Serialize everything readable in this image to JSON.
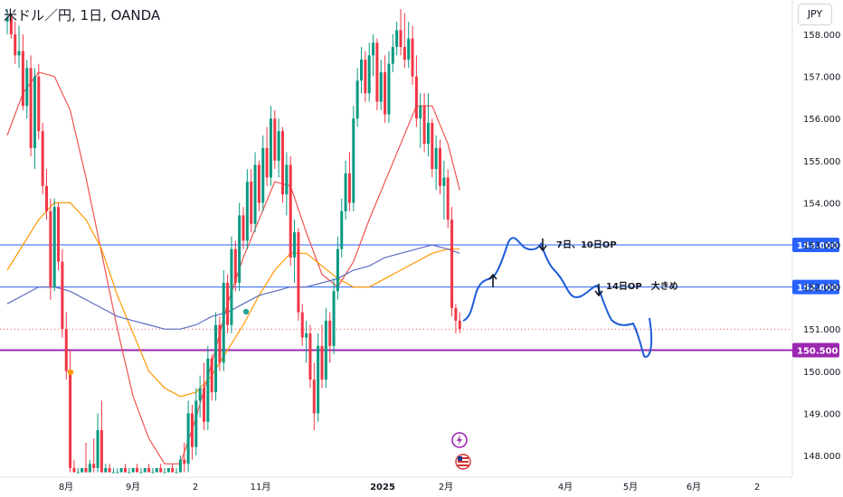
{
  "header": {
    "symbol_title": "米ドル／円, 1日, OANDA",
    "currency_button": "JPY"
  },
  "chart_data": {
    "type": "candlestick",
    "title": "米ドル／円, 1日, OANDA",
    "xlabel": "",
    "ylabel": "",
    "ylim": [
      147.6,
      158.6
    ],
    "y_ticks": [
      "158.000",
      "157.000",
      "156.000",
      "155.000",
      "154.000",
      "153.000",
      "152.000",
      "151.000",
      "150.000",
      "149.000",
      "148.000"
    ],
    "x_ticks": [
      {
        "label": "8月",
        "bold": false
      },
      {
        "label": "9月",
        "bold": false
      },
      {
        "label": "2",
        "bold": false
      },
      {
        "label": "11月",
        "bold": false
      },
      {
        "label": "2025",
        "bold": true
      },
      {
        "label": "2月",
        "bold": false
      },
      {
        "label": "4月",
        "bold": false
      },
      {
        "label": "5月",
        "bold": false
      },
      {
        "label": "6月",
        "bold": false
      },
      {
        "label": "2",
        "bold": false
      }
    ],
    "horizontal_levels": [
      {
        "value": 153.0,
        "label": "153.000",
        "color": "#2962ff"
      },
      {
        "value": 152.0,
        "label": "152.000",
        "color": "#2962ff"
      },
      {
        "value": 150.5,
        "label": "150.500",
        "color": "#9c27b0"
      }
    ],
    "last_price": 151.0,
    "candles": [
      [
        158.3,
        158.6,
        158.0,
        158.4
      ],
      [
        158.4,
        158.5,
        157.9,
        158.0
      ],
      [
        158.0,
        158.3,
        157.3,
        157.5
      ],
      [
        157.5,
        158.2,
        157.2,
        157.6
      ],
      [
        157.6,
        158.0,
        156.2,
        156.3
      ],
      [
        156.3,
        157.4,
        156.0,
        157.2
      ],
      [
        157.2,
        157.5,
        155.1,
        155.3
      ],
      [
        155.3,
        157.2,
        154.8,
        157.0
      ],
      [
        157.0,
        157.3,
        155.5,
        155.7
      ],
      [
        155.7,
        155.9,
        154.2,
        154.4
      ],
      [
        154.4,
        154.8,
        153.6,
        153.8
      ],
      [
        153.8,
        154.1,
        151.7,
        152.0
      ],
      [
        152.0,
        154.1,
        151.9,
        153.9
      ],
      [
        153.9,
        154.0,
        152.4,
        152.6
      ],
      [
        152.6,
        152.9,
        150.8,
        151.0
      ],
      [
        151.0,
        151.4,
        149.8,
        150.0
      ],
      [
        150.0,
        150.5,
        147.6,
        147.7
      ],
      [
        147.7,
        147.9,
        147.6,
        147.6
      ],
      [
        147.6,
        147.7,
        147.6,
        147.6
      ],
      [
        147.6,
        147.7,
        147.6,
        147.7
      ],
      [
        147.7,
        148.3,
        147.6,
        147.6
      ],
      [
        147.6,
        147.9,
        147.6,
        147.8
      ],
      [
        147.8,
        148.4,
        147.6,
        147.7
      ],
      [
        147.7,
        149.0,
        147.6,
        148.6
      ],
      [
        148.6,
        149.3,
        147.6,
        147.6
      ],
      [
        147.6,
        147.8,
        147.6,
        147.7
      ],
      [
        147.7,
        147.8,
        147.6,
        147.6
      ],
      [
        147.6,
        147.7,
        147.6,
        147.6
      ],
      [
        147.6,
        147.7,
        147.6,
        147.6
      ],
      [
        147.6,
        147.7,
        147.6,
        147.7
      ],
      [
        147.7,
        147.8,
        147.6,
        147.6
      ],
      [
        147.6,
        147.7,
        147.6,
        147.6
      ],
      [
        147.6,
        147.7,
        147.6,
        147.7
      ],
      [
        147.7,
        147.8,
        147.6,
        147.6
      ],
      [
        147.6,
        147.7,
        147.6,
        147.6
      ],
      [
        147.6,
        147.7,
        147.6,
        147.7
      ],
      [
        147.7,
        147.8,
        147.6,
        147.6
      ],
      [
        147.6,
        147.7,
        147.6,
        147.6
      ],
      [
        147.6,
        147.7,
        147.6,
        147.7
      ],
      [
        147.7,
        147.8,
        147.6,
        147.6
      ],
      [
        147.6,
        147.7,
        147.6,
        147.6
      ],
      [
        147.6,
        147.7,
        147.6,
        147.7
      ],
      [
        147.7,
        147.8,
        147.6,
        147.6
      ],
      [
        147.6,
        147.7,
        147.6,
        147.6
      ],
      [
        147.6,
        148.0,
        147.6,
        147.9
      ],
      [
        147.9,
        148.3,
        147.6,
        147.8
      ],
      [
        147.8,
        149.3,
        147.6,
        149.0
      ],
      [
        149.0,
        149.2,
        147.9,
        148.2
      ],
      [
        148.2,
        149.6,
        148.0,
        149.3
      ],
      [
        149.3,
        149.9,
        148.9,
        149.6
      ],
      [
        149.6,
        150.2,
        148.6,
        148.8
      ],
      [
        148.8,
        150.6,
        148.6,
        150.3
      ],
      [
        150.3,
        150.4,
        149.3,
        149.5
      ],
      [
        149.5,
        151.4,
        149.3,
        151.1
      ],
      [
        151.1,
        151.3,
        150.0,
        150.2
      ],
      [
        150.2,
        152.4,
        150.0,
        152.1
      ],
      [
        152.1,
        152.3,
        150.9,
        151.1
      ],
      [
        151.1,
        153.2,
        150.9,
        152.9
      ],
      [
        152.9,
        153.1,
        151.9,
        152.1
      ],
      [
        152.1,
        154.0,
        151.9,
        153.7
      ],
      [
        153.7,
        153.9,
        152.9,
        153.1
      ],
      [
        153.1,
        154.8,
        152.9,
        154.5
      ],
      [
        154.5,
        154.8,
        153.3,
        153.5
      ],
      [
        153.5,
        155.2,
        153.3,
        154.9
      ],
      [
        154.9,
        155.0,
        153.8,
        154.0
      ],
      [
        154.0,
        155.6,
        153.8,
        155.3
      ],
      [
        155.3,
        155.8,
        154.4,
        154.6
      ],
      [
        154.6,
        156.3,
        154.4,
        156.0
      ],
      [
        156.0,
        156.2,
        154.8,
        155.0
      ],
      [
        155.0,
        156.0,
        154.6,
        155.7
      ],
      [
        155.7,
        155.8,
        154.0,
        154.2
      ],
      [
        154.2,
        155.2,
        153.7,
        154.9
      ],
      [
        154.9,
        155.1,
        152.5,
        152.7
      ],
      [
        152.7,
        153.6,
        152.1,
        153.3
      ],
      [
        153.3,
        153.4,
        151.2,
        151.4
      ],
      [
        151.4,
        151.6,
        150.6,
        150.8
      ],
      [
        150.8,
        151.2,
        150.2,
        150.9
      ],
      [
        150.9,
        151.1,
        149.6,
        149.8
      ],
      [
        149.8,
        150.2,
        148.6,
        149.0
      ],
      [
        149.0,
        150.9,
        148.8,
        150.6
      ],
      [
        150.6,
        151.1,
        149.6,
        149.8
      ],
      [
        149.8,
        151.5,
        149.6,
        151.2
      ],
      [
        151.2,
        151.4,
        150.2,
        150.6
      ],
      [
        150.6,
        152.2,
        150.4,
        151.9
      ],
      [
        151.9,
        153.2,
        151.7,
        152.9
      ],
      [
        152.9,
        154.1,
        152.7,
        153.8
      ],
      [
        153.8,
        155.0,
        153.6,
        154.7
      ],
      [
        154.7,
        155.2,
        153.8,
        154.0
      ],
      [
        154.0,
        156.3,
        153.8,
        156.0
      ],
      [
        156.0,
        157.2,
        155.8,
        156.9
      ],
      [
        156.9,
        157.7,
        156.6,
        157.4
      ],
      [
        157.4,
        157.6,
        156.4,
        156.6
      ],
      [
        156.6,
        157.8,
        156.4,
        157.5
      ],
      [
        157.5,
        158.0,
        157.0,
        157.8
      ],
      [
        157.8,
        157.9,
        156.2,
        156.4
      ],
      [
        156.4,
        157.4,
        156.2,
        157.1
      ],
      [
        157.1,
        157.5,
        155.9,
        156.1
      ],
      [
        156.1,
        157.6,
        155.9,
        157.3
      ],
      [
        157.3,
        158.0,
        157.1,
        157.7
      ],
      [
        157.7,
        158.3,
        157.5,
        158.1
      ],
      [
        158.1,
        158.6,
        157.5,
        157.7
      ],
      [
        157.7,
        158.5,
        157.2,
        157.4
      ],
      [
        157.4,
        158.3,
        157.2,
        157.9
      ],
      [
        157.9,
        158.2,
        156.8,
        157.0
      ],
      [
        157.0,
        157.5,
        155.8,
        156.0
      ],
      [
        156.0,
        156.6,
        155.3,
        156.3
      ],
      [
        156.3,
        156.6,
        155.2,
        155.4
      ],
      [
        155.4,
        156.6,
        155.1,
        155.9
      ],
      [
        155.9,
        156.0,
        154.6,
        154.8
      ],
      [
        154.8,
        155.6,
        154.3,
        155.3
      ],
      [
        155.3,
        155.5,
        154.2,
        154.4
      ],
      [
        154.4,
        155.0,
        153.6,
        154.6
      ],
      [
        154.6,
        154.8,
        153.4,
        153.6
      ],
      [
        153.6,
        153.9,
        151.3,
        151.5
      ],
      [
        151.5,
        151.6,
        150.9,
        151.2
      ],
      [
        151.2,
        151.4,
        150.9,
        151.0
      ]
    ],
    "series": [
      {
        "name": "",
        "color": "#ef5350",
        "values": [
          [
            0,
            155.6
          ],
          [
            4,
            156.6
          ],
          [
            8,
            157.1
          ],
          [
            12,
            157.0
          ],
          [
            16,
            156.2
          ],
          [
            20,
            154.6
          ],
          [
            24,
            152.8
          ],
          [
            28,
            151.0
          ],
          [
            32,
            149.4
          ],
          [
            36,
            148.4
          ],
          [
            40,
            147.8
          ],
          [
            44,
            147.8
          ],
          [
            48,
            148.9
          ],
          [
            52,
            150.2
          ],
          [
            56,
            151.6
          ],
          [
            60,
            152.7
          ],
          [
            64,
            153.6
          ],
          [
            68,
            154.5
          ],
          [
            72,
            154.4
          ],
          [
            76,
            153.3
          ],
          [
            80,
            152.3
          ],
          [
            84,
            152.0
          ],
          [
            88,
            152.6
          ],
          [
            92,
            153.6
          ],
          [
            96,
            154.5
          ],
          [
            100,
            155.4
          ],
          [
            104,
            156.3
          ],
          [
            108,
            156.3
          ],
          [
            112,
            155.4
          ],
          [
            115,
            154.3
          ]
        ]
      },
      {
        "name": "",
        "color": "#ff9800",
        "values": [
          [
            0,
            152.4
          ],
          [
            4,
            153.0
          ],
          [
            8,
            153.6
          ],
          [
            12,
            154.0
          ],
          [
            16,
            154.0
          ],
          [
            20,
            153.6
          ],
          [
            24,
            152.9
          ],
          [
            28,
            151.8
          ],
          [
            32,
            150.9
          ],
          [
            36,
            150.0
          ],
          [
            40,
            149.6
          ],
          [
            44,
            149.4
          ],
          [
            48,
            149.5
          ],
          [
            52,
            149.9
          ],
          [
            56,
            150.5
          ],
          [
            60,
            151.1
          ],
          [
            64,
            151.8
          ],
          [
            68,
            152.4
          ],
          [
            72,
            152.8
          ],
          [
            76,
            152.8
          ],
          [
            80,
            152.5
          ],
          [
            84,
            152.2
          ],
          [
            88,
            152.0
          ],
          [
            92,
            152.0
          ],
          [
            96,
            152.2
          ],
          [
            100,
            152.4
          ],
          [
            104,
            152.6
          ],
          [
            108,
            152.8
          ],
          [
            112,
            152.9
          ],
          [
            115,
            152.9
          ]
        ]
      },
      {
        "name": "",
        "color": "#5c6bc0",
        "values": [
          [
            0,
            151.6
          ],
          [
            4,
            151.8
          ],
          [
            8,
            152.0
          ],
          [
            12,
            152.0
          ],
          [
            16,
            151.9
          ],
          [
            20,
            151.7
          ],
          [
            24,
            151.5
          ],
          [
            28,
            151.3
          ],
          [
            32,
            151.2
          ],
          [
            36,
            151.1
          ],
          [
            40,
            151.0
          ],
          [
            44,
            151.0
          ],
          [
            48,
            151.1
          ],
          [
            52,
            151.3
          ],
          [
            56,
            151.4
          ],
          [
            60,
            151.6
          ],
          [
            64,
            151.8
          ],
          [
            68,
            151.9
          ],
          [
            72,
            152.0
          ],
          [
            76,
            152.0
          ],
          [
            80,
            152.1
          ],
          [
            84,
            152.2
          ],
          [
            88,
            152.4
          ],
          [
            92,
            152.5
          ],
          [
            96,
            152.7
          ],
          [
            100,
            152.8
          ],
          [
            104,
            152.9
          ],
          [
            108,
            153.0
          ],
          [
            112,
            152.9
          ],
          [
            115,
            152.8
          ]
        ]
      }
    ],
    "annotations": [
      {
        "text": "7日、10日OP"
      },
      {
        "text": "14日OP　大きめ"
      }
    ]
  }
}
